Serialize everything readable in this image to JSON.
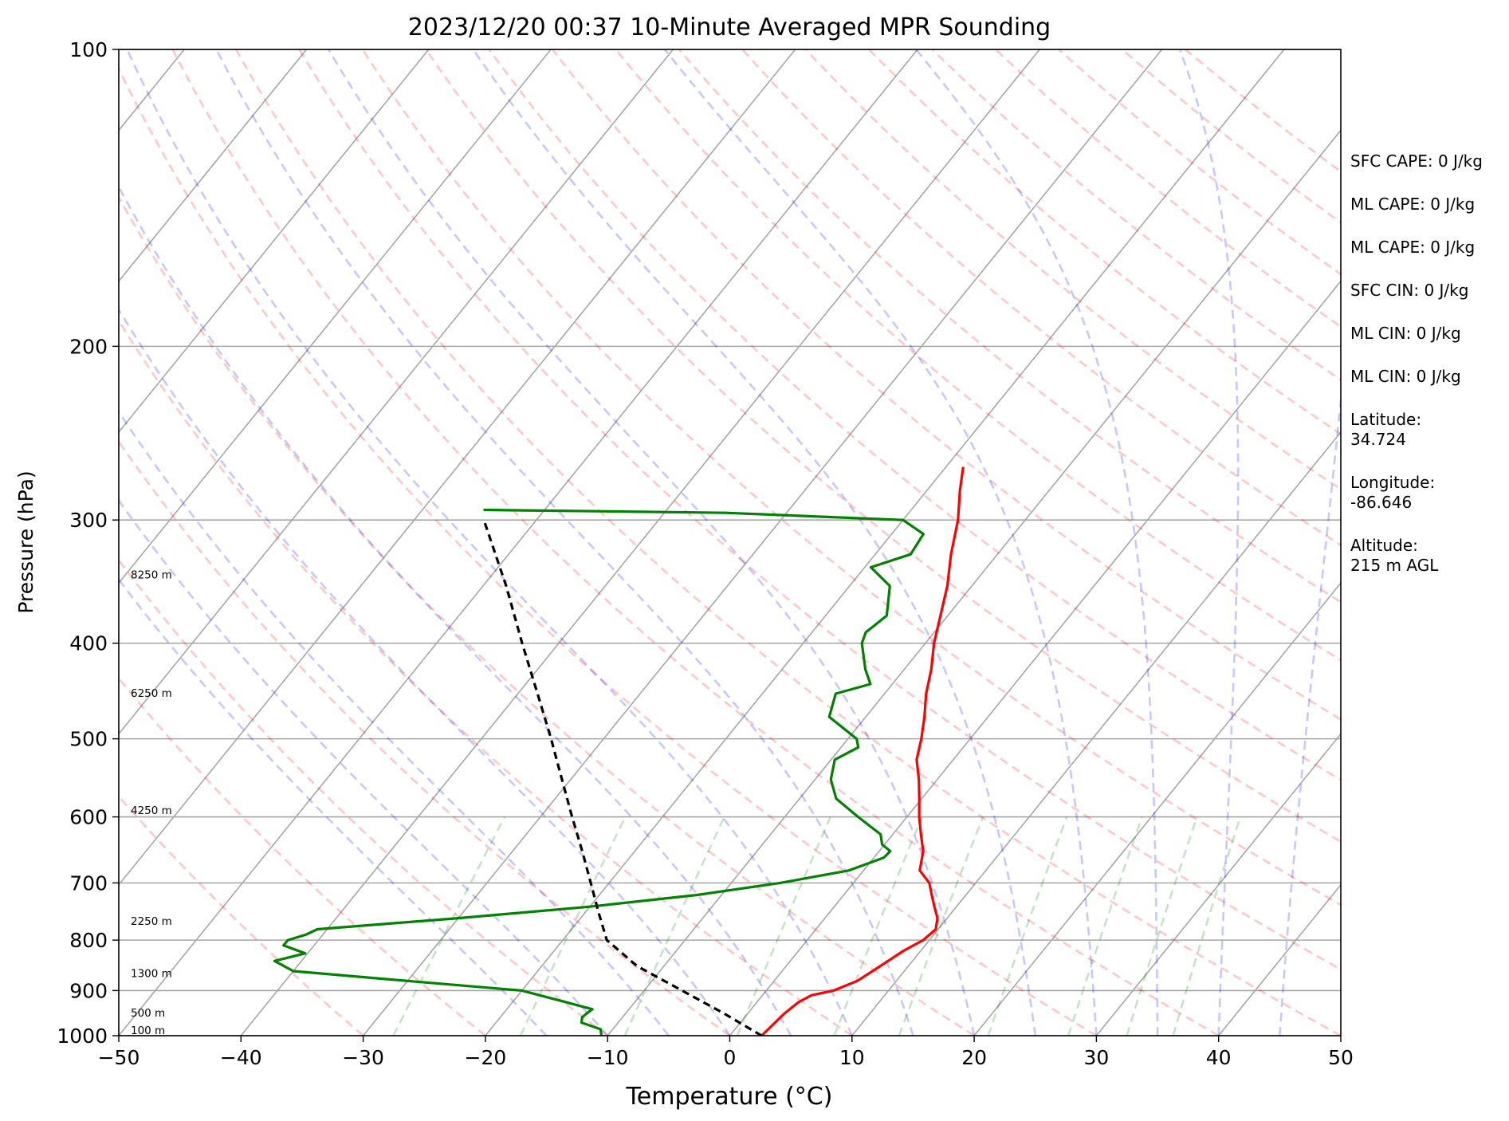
{
  "chart_data": {
    "type": "line",
    "chart_kind": "skew-T log-P sounding",
    "title": "2023/12/20 00:37 10-Minute Averaged MPR Sounding",
    "xlabel": "Temperature (°C)",
    "ylabel": "Pressure (hPa)",
    "xlim": [
      -50,
      50
    ],
    "ylim": [
      1000,
      100
    ],
    "y_scale": "log",
    "xticks": [
      -50,
      -40,
      -30,
      -20,
      -10,
      0,
      10,
      20,
      30,
      40,
      50
    ],
    "xtick_labels": [
      "−50",
      "−40",
      "−30",
      "−20",
      "−10",
      "0",
      "10",
      "20",
      "30",
      "40",
      "50"
    ],
    "yticks": [
      1000,
      900,
      800,
      700,
      600,
      500,
      400,
      300,
      200,
      100
    ],
    "ytick_labels": [
      "1000",
      "900",
      "800",
      "700",
      "600",
      "500",
      "400",
      "300",
      "200",
      "100"
    ],
    "grid": true,
    "series": [
      {
        "role": "temperature",
        "color": "#ff0000",
        "points": [
          [
            1000,
            2.6
          ],
          [
            975,
            2.8
          ],
          [
            950,
            3.0
          ],
          [
            925,
            3.4
          ],
          [
            910,
            4.0
          ],
          [
            900,
            5.5
          ],
          [
            880,
            6.8
          ],
          [
            860,
            7.4
          ],
          [
            840,
            8.0
          ],
          [
            820,
            8.6
          ],
          [
            800,
            9.5
          ],
          [
            780,
            9.8
          ],
          [
            760,
            9.2
          ],
          [
            740,
            8.2
          ],
          [
            720,
            7.2
          ],
          [
            700,
            6.2
          ],
          [
            680,
            4.6
          ],
          [
            650,
            3.6
          ],
          [
            625,
            2.3
          ],
          [
            600,
            1.0
          ],
          [
            575,
            -0.2
          ],
          [
            550,
            -1.5
          ],
          [
            525,
            -3.0
          ],
          [
            500,
            -4.0
          ],
          [
            475,
            -5.2
          ],
          [
            450,
            -6.6
          ],
          [
            425,
            -7.8
          ],
          [
            400,
            -9.3
          ],
          [
            375,
            -10.6
          ],
          [
            350,
            -12.0
          ],
          [
            325,
            -13.8
          ],
          [
            300,
            -15.5
          ],
          [
            280,
            -17.3
          ],
          [
            265,
            -18.6
          ]
        ]
      },
      {
        "role": "dewpoint",
        "color": "#008000",
        "points": [
          [
            1000,
            -10.5
          ],
          [
            985,
            -11.0
          ],
          [
            970,
            -13.0
          ],
          [
            958,
            -13.3
          ],
          [
            950,
            -13.2
          ],
          [
            940,
            -13.0
          ],
          [
            925,
            -15.6
          ],
          [
            900,
            -20.0
          ],
          [
            880,
            -30.0
          ],
          [
            860,
            -40.0
          ],
          [
            840,
            -42.2
          ],
          [
            825,
            -40.2
          ],
          [
            810,
            -42.5
          ],
          [
            800,
            -42.5
          ],
          [
            790,
            -41.4
          ],
          [
            780,
            -40.8
          ],
          [
            760,
            -30.0
          ],
          [
            740,
            -20.0
          ],
          [
            720,
            -12.0
          ],
          [
            700,
            -6.0
          ],
          [
            680,
            -1.2
          ],
          [
            660,
            0.8
          ],
          [
            650,
            0.9
          ],
          [
            640,
            -0.2
          ],
          [
            625,
            -1.0
          ],
          [
            600,
            -4.0
          ],
          [
            575,
            -7.0
          ],
          [
            550,
            -8.7
          ],
          [
            525,
            -9.7
          ],
          [
            510,
            -8.6
          ],
          [
            500,
            -9.3
          ],
          [
            475,
            -13.0
          ],
          [
            450,
            -14.0
          ],
          [
            440,
            -11.8
          ],
          [
            425,
            -13.2
          ],
          [
            400,
            -15.2
          ],
          [
            390,
            -15.6
          ],
          [
            375,
            -15.0
          ],
          [
            350,
            -16.7
          ],
          [
            335,
            -19.5
          ],
          [
            325,
            -17.1
          ],
          [
            310,
            -17.4
          ],
          [
            300,
            -20.0
          ],
          [
            295,
            -35.0
          ],
          [
            294,
            -45.0
          ],
          [
            293,
            -55.0
          ]
        ]
      },
      {
        "role": "parcel path",
        "color": "#000000",
        "points": [
          [
            1000,
            2.6
          ],
          [
            950,
            -1.9
          ],
          [
            900,
            -6.9
          ],
          [
            850,
            -12.2
          ],
          [
            800,
            -16.4
          ],
          [
            750,
            -18.9
          ],
          [
            700,
            -21.5
          ],
          [
            650,
            -24.3
          ],
          [
            600,
            -27.4
          ],
          [
            550,
            -30.7
          ],
          [
            500,
            -34.3
          ],
          [
            450,
            -38.4
          ],
          [
            400,
            -43.0
          ],
          [
            350,
            -48.1
          ],
          [
            300,
            -54.3
          ]
        ]
      }
    ],
    "isotherm_step": 10,
    "dry_adiabats_theta_c": [
      -30,
      -20,
      -10,
      0,
      10,
      20,
      30,
      40,
      50,
      60,
      70,
      80,
      90,
      100,
      110,
      120,
      130,
      140,
      150,
      160,
      170,
      180,
      190,
      200
    ],
    "moist_adiabats_start_t": [
      -15,
      -10,
      -5,
      0,
      5,
      10,
      15,
      20,
      25,
      30,
      35,
      40,
      45
    ],
    "mixing_ratios_gkg": [
      0.4,
      1,
      2,
      4,
      7,
      10,
      16,
      24,
      32,
      40
    ],
    "height_labels": [
      {
        "p": 1000,
        "text": "100 m"
      },
      {
        "p": 960,
        "text": "500 m"
      },
      {
        "p": 875,
        "text": "1300 m"
      },
      {
        "p": 775,
        "text": "2250 m"
      },
      {
        "p": 598,
        "text": "4250 m"
      },
      {
        "p": 455,
        "text": "6250 m"
      },
      {
        "p": 345,
        "text": "8250 m"
      }
    ],
    "annotations": [
      "SFC CAPE: 0 J/kg",
      "ML CAPE: 0 J/kg",
      "ML CAPE: 0 J/kg",
      "SFC CIN: 0 J/kg",
      "ML CIN: 0 J/kg",
      "ML CIN: 0 J/kg",
      "Latitude:\n34.724",
      "Longitude:\n-86.646",
      "Altitude:\n215 m AGL"
    ]
  }
}
